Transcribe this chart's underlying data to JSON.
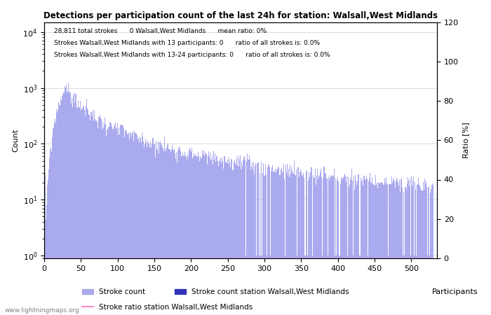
{
  "title": "Detections per participation count of the last 24h for station: Walsall,West Midlands",
  "annotation_lines": [
    "28,811 total strokes      0 Walsall,West Midlands      mean ratio: 0%",
    "Strokes Walsall,West Midlands with 13 participants: 0      ratio of all strokes is: 0.0%",
    "Strokes Walsall,West Midlands with 13-24 participants: 0      ratio of all strokes is: 0.0%"
  ],
  "xlabel": "Participants",
  "ylabel_left": "Count",
  "ylabel_right": "Ratio [%]",
  "xlim": [
    0,
    535
  ],
  "ylim_left": [
    0.9,
    15000
  ],
  "ylim_right": [
    0,
    120
  ],
  "bar_color_light": "#aaaaee",
  "bar_color_dark": "#3333bb",
  "line_color": "#ff88cc",
  "background_color": "#ffffff",
  "watermark": "www.lightningmaps.org",
  "legend_entries": [
    "Stroke count",
    "Stroke count station Walsall,West Midlands",
    "Stroke ratio station Walsall,West Midlands"
  ],
  "yticks_right": [
    0,
    20,
    40,
    60,
    80,
    100,
    120
  ],
  "xticks": [
    0,
    50,
    100,
    150,
    200,
    250,
    300,
    350,
    400,
    450,
    500
  ],
  "grid_color": "#cccccc",
  "figsize": [
    7.0,
    4.5
  ],
  "dpi": 100
}
